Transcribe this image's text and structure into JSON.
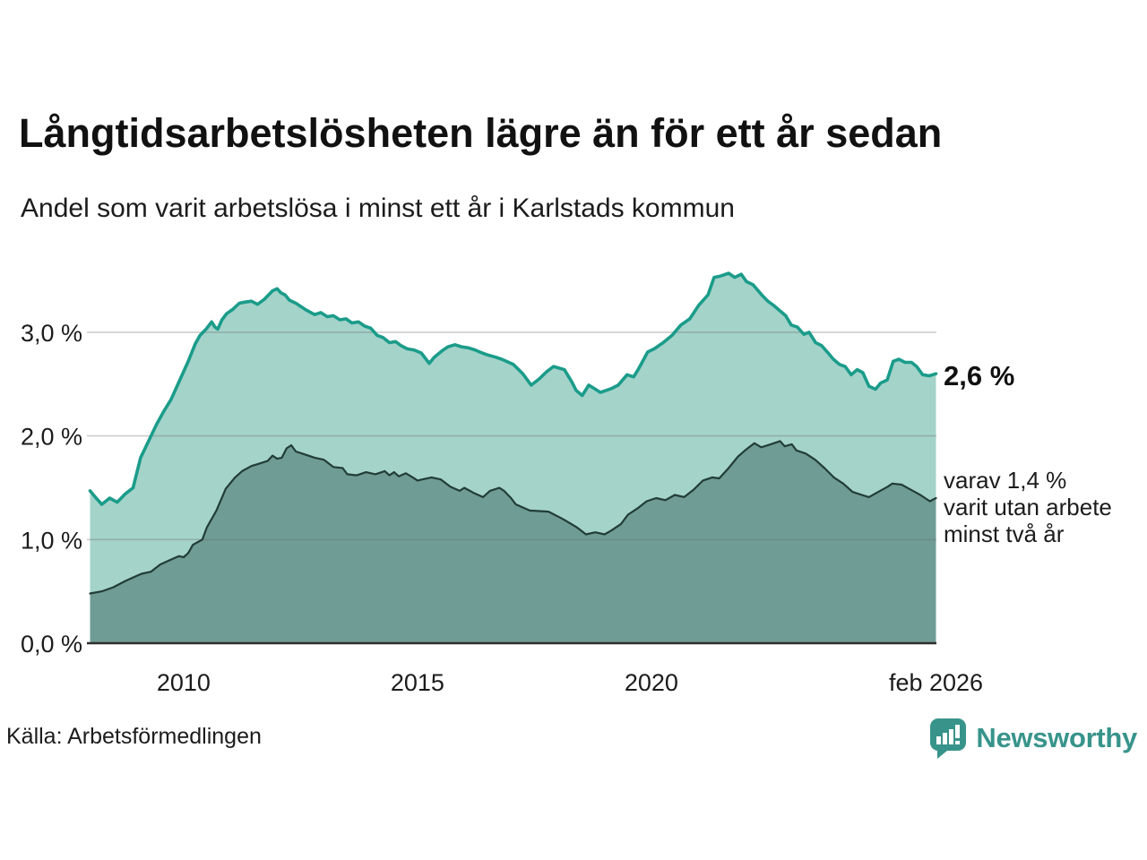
{
  "header": {
    "title": "Långtidsarbetslösheten lägre än för ett år sedan",
    "subtitle": "Andel som varit arbetslösa i minst ett år i Karlstads kommun"
  },
  "chart_data": {
    "type": "area",
    "title": "Långtidsarbetslösheten lägre än för ett år sedan",
    "subtitle": "Andel som varit arbetslösa i minst ett år i Karlstads kommun",
    "unit": "%",
    "xlim": [
      2008.0,
      2026.083
    ],
    "ylim": [
      0,
      3.7
    ],
    "grid": "horizontal",
    "legend_position": "none",
    "colors": {
      "series1_line": "#1b9c8a",
      "series1_fill": "#a4d3ca",
      "series2_line": "#223d37",
      "series2_fill": "#6f9c94",
      "gridline": "#d8d8d8",
      "baseline": "#2e2e2e",
      "axis_text": "#1c1c1c",
      "brand_teal": "#38948b"
    },
    "x_ticks": [
      {
        "value": 2010,
        "label": "2010"
      },
      {
        "value": 2015,
        "label": "2015"
      },
      {
        "value": 2020,
        "label": "2020"
      },
      {
        "value": 2026.083,
        "label": "feb 2026"
      }
    ],
    "y_ticks": [
      {
        "value": 0,
        "label": "0,0 %"
      },
      {
        "value": 1,
        "label": "1,0 %"
      },
      {
        "value": 2,
        "label": "2,0 %"
      },
      {
        "value": 3,
        "label": "3,0 %"
      }
    ],
    "annotations": {
      "end_value": "2,6 %",
      "secondary_lines": [
        "varav 1,4 %",
        "varit utan arbete",
        "minst två år"
      ]
    },
    "series": [
      {
        "name": "Andel som varit arbetslösa i minst ett år",
        "end_label": "2,6 %",
        "points": [
          [
            2008.0,
            1.47
          ],
          [
            2008.13,
            1.4
          ],
          [
            2008.25,
            1.34
          ],
          [
            2008.42,
            1.4
          ],
          [
            2008.58,
            1.36
          ],
          [
            2008.75,
            1.44
          ],
          [
            2008.92,
            1.5
          ],
          [
            2009.08,
            1.79
          ],
          [
            2009.25,
            1.95
          ],
          [
            2009.42,
            2.11
          ],
          [
            2009.58,
            2.24
          ],
          [
            2009.73,
            2.35
          ],
          [
            2009.92,
            2.54
          ],
          [
            2010.1,
            2.72
          ],
          [
            2010.25,
            2.89
          ],
          [
            2010.35,
            2.97
          ],
          [
            2010.48,
            3.03
          ],
          [
            2010.6,
            3.1
          ],
          [
            2010.67,
            3.05
          ],
          [
            2010.73,
            3.03
          ],
          [
            2010.82,
            3.12
          ],
          [
            2010.92,
            3.18
          ],
          [
            2011.05,
            3.22
          ],
          [
            2011.19,
            3.28
          ],
          [
            2011.3,
            3.29
          ],
          [
            2011.45,
            3.3
          ],
          [
            2011.58,
            3.27
          ],
          [
            2011.73,
            3.32
          ],
          [
            2011.9,
            3.4
          ],
          [
            2012.0,
            3.42
          ],
          [
            2012.08,
            3.38
          ],
          [
            2012.17,
            3.36
          ],
          [
            2012.26,
            3.31
          ],
          [
            2012.4,
            3.28
          ],
          [
            2012.6,
            3.22
          ],
          [
            2012.8,
            3.17
          ],
          [
            2012.93,
            3.19
          ],
          [
            2013.07,
            3.15
          ],
          [
            2013.2,
            3.16
          ],
          [
            2013.34,
            3.12
          ],
          [
            2013.47,
            3.13
          ],
          [
            2013.6,
            3.09
          ],
          [
            2013.74,
            3.1
          ],
          [
            2013.87,
            3.06
          ],
          [
            2014.0,
            3.04
          ],
          [
            2014.14,
            2.97
          ],
          [
            2014.26,
            2.95
          ],
          [
            2014.4,
            2.9
          ],
          [
            2014.53,
            2.91
          ],
          [
            2014.65,
            2.87
          ],
          [
            2014.78,
            2.84
          ],
          [
            2014.92,
            2.83
          ],
          [
            2015.08,
            2.8
          ],
          [
            2015.25,
            2.7
          ],
          [
            2015.36,
            2.76
          ],
          [
            2015.52,
            2.82
          ],
          [
            2015.65,
            2.86
          ],
          [
            2015.8,
            2.88
          ],
          [
            2015.94,
            2.86
          ],
          [
            2016.09,
            2.85
          ],
          [
            2016.23,
            2.83
          ],
          [
            2016.38,
            2.8
          ],
          [
            2016.51,
            2.78
          ],
          [
            2016.67,
            2.76
          ],
          [
            2016.8,
            2.74
          ],
          [
            2017.05,
            2.69
          ],
          [
            2017.25,
            2.6
          ],
          [
            2017.43,
            2.49
          ],
          [
            2017.6,
            2.55
          ],
          [
            2017.76,
            2.62
          ],
          [
            2017.91,
            2.67
          ],
          [
            2018.14,
            2.64
          ],
          [
            2018.3,
            2.52
          ],
          [
            2018.39,
            2.44
          ],
          [
            2018.52,
            2.39
          ],
          [
            2018.66,
            2.49
          ],
          [
            2018.77,
            2.46
          ],
          [
            2018.91,
            2.42
          ],
          [
            2019.04,
            2.44
          ],
          [
            2019.16,
            2.46
          ],
          [
            2019.29,
            2.49
          ],
          [
            2019.48,
            2.59
          ],
          [
            2019.62,
            2.57
          ],
          [
            2019.73,
            2.65
          ],
          [
            2019.92,
            2.81
          ],
          [
            2020.06,
            2.84
          ],
          [
            2020.25,
            2.9
          ],
          [
            2020.44,
            2.97
          ],
          [
            2020.63,
            3.07
          ],
          [
            2020.82,
            3.13
          ],
          [
            2021.01,
            3.26
          ],
          [
            2021.21,
            3.36
          ],
          [
            2021.34,
            3.53
          ],
          [
            2021.46,
            3.54
          ],
          [
            2021.65,
            3.57
          ],
          [
            2021.78,
            3.53
          ],
          [
            2021.92,
            3.56
          ],
          [
            2022.03,
            3.49
          ],
          [
            2022.17,
            3.46
          ],
          [
            2022.36,
            3.36
          ],
          [
            2022.49,
            3.3
          ],
          [
            2022.61,
            3.26
          ],
          [
            2022.74,
            3.21
          ],
          [
            2022.87,
            3.16
          ],
          [
            2022.99,
            3.07
          ],
          [
            2023.12,
            3.05
          ],
          [
            2023.26,
            2.98
          ],
          [
            2023.37,
            3.0
          ],
          [
            2023.51,
            2.9
          ],
          [
            2023.64,
            2.87
          ],
          [
            2023.76,
            2.81
          ],
          [
            2023.89,
            2.74
          ],
          [
            2024.02,
            2.69
          ],
          [
            2024.14,
            2.67
          ],
          [
            2024.27,
            2.59
          ],
          [
            2024.4,
            2.64
          ],
          [
            2024.52,
            2.61
          ],
          [
            2024.65,
            2.48
          ],
          [
            2024.79,
            2.45
          ],
          [
            2024.9,
            2.51
          ],
          [
            2025.04,
            2.54
          ],
          [
            2025.17,
            2.72
          ],
          [
            2025.29,
            2.74
          ],
          [
            2025.42,
            2.71
          ],
          [
            2025.56,
            2.71
          ],
          [
            2025.67,
            2.67
          ],
          [
            2025.8,
            2.59
          ],
          [
            2025.94,
            2.58
          ],
          [
            2026.083,
            2.6
          ]
        ]
      },
      {
        "name": "varav utan arbete minst två år",
        "end_label": "1,4 %",
        "points": [
          [
            2008.0,
            0.48
          ],
          [
            2008.25,
            0.5
          ],
          [
            2008.5,
            0.54
          ],
          [
            2008.75,
            0.6
          ],
          [
            2009.0,
            0.65
          ],
          [
            2009.1,
            0.67
          ],
          [
            2009.3,
            0.69
          ],
          [
            2009.5,
            0.76
          ],
          [
            2009.7,
            0.8
          ],
          [
            2009.9,
            0.84
          ],
          [
            2010.0,
            0.83
          ],
          [
            2010.1,
            0.87
          ],
          [
            2010.2,
            0.95
          ],
          [
            2010.4,
            1.0
          ],
          [
            2010.5,
            1.12
          ],
          [
            2010.7,
            1.28
          ],
          [
            2010.9,
            1.49
          ],
          [
            2011.1,
            1.6
          ],
          [
            2011.25,
            1.66
          ],
          [
            2011.45,
            1.71
          ],
          [
            2011.6,
            1.73
          ],
          [
            2011.8,
            1.76
          ],
          [
            2011.9,
            1.81
          ],
          [
            2012.0,
            1.78
          ],
          [
            2012.1,
            1.79
          ],
          [
            2012.2,
            1.88
          ],
          [
            2012.3,
            1.91
          ],
          [
            2012.4,
            1.85
          ],
          [
            2012.6,
            1.82
          ],
          [
            2012.8,
            1.79
          ],
          [
            2013.0,
            1.77
          ],
          [
            2013.2,
            1.7
          ],
          [
            2013.4,
            1.69
          ],
          [
            2013.5,
            1.63
          ],
          [
            2013.7,
            1.62
          ],
          [
            2013.9,
            1.65
          ],
          [
            2014.1,
            1.63
          ],
          [
            2014.3,
            1.66
          ],
          [
            2014.4,
            1.62
          ],
          [
            2014.5,
            1.65
          ],
          [
            2014.6,
            1.61
          ],
          [
            2014.75,
            1.64
          ],
          [
            2014.9,
            1.6
          ],
          [
            2015.0,
            1.57
          ],
          [
            2015.1,
            1.58
          ],
          [
            2015.3,
            1.6
          ],
          [
            2015.5,
            1.58
          ],
          [
            2015.7,
            1.51
          ],
          [
            2015.9,
            1.47
          ],
          [
            2016.0,
            1.5
          ],
          [
            2016.2,
            1.45
          ],
          [
            2016.4,
            1.41
          ],
          [
            2016.55,
            1.47
          ],
          [
            2016.75,
            1.5
          ],
          [
            2016.85,
            1.47
          ],
          [
            2017.0,
            1.4
          ],
          [
            2017.1,
            1.34
          ],
          [
            2017.4,
            1.28
          ],
          [
            2017.8,
            1.27
          ],
          [
            2018.1,
            1.2
          ],
          [
            2018.4,
            1.12
          ],
          [
            2018.6,
            1.05
          ],
          [
            2018.8,
            1.07
          ],
          [
            2019.0,
            1.05
          ],
          [
            2019.15,
            1.09
          ],
          [
            2019.35,
            1.15
          ],
          [
            2019.5,
            1.24
          ],
          [
            2019.7,
            1.3
          ],
          [
            2019.9,
            1.37
          ],
          [
            2020.1,
            1.4
          ],
          [
            2020.3,
            1.38
          ],
          [
            2020.5,
            1.43
          ],
          [
            2020.7,
            1.41
          ],
          [
            2020.9,
            1.48
          ],
          [
            2021.1,
            1.57
          ],
          [
            2021.3,
            1.6
          ],
          [
            2021.45,
            1.59
          ],
          [
            2021.65,
            1.69
          ],
          [
            2021.85,
            1.8
          ],
          [
            2022.0,
            1.86
          ],
          [
            2022.2,
            1.93
          ],
          [
            2022.35,
            1.89
          ],
          [
            2022.55,
            1.92
          ],
          [
            2022.75,
            1.95
          ],
          [
            2022.85,
            1.9
          ],
          [
            2023.0,
            1.92
          ],
          [
            2023.1,
            1.86
          ],
          [
            2023.3,
            1.83
          ],
          [
            2023.5,
            1.77
          ],
          [
            2023.7,
            1.69
          ],
          [
            2023.9,
            1.6
          ],
          [
            2024.1,
            1.54
          ],
          [
            2024.3,
            1.46
          ],
          [
            2024.5,
            1.43
          ],
          [
            2024.65,
            1.41
          ],
          [
            2024.85,
            1.46
          ],
          [
            2025.05,
            1.51
          ],
          [
            2025.15,
            1.54
          ],
          [
            2025.35,
            1.53
          ],
          [
            2025.55,
            1.48
          ],
          [
            2025.75,
            1.43
          ],
          [
            2025.95,
            1.37
          ],
          [
            2026.083,
            1.4
          ]
        ]
      }
    ]
  },
  "footer": {
    "source": "Källa: Arbetsförmedlingen",
    "brand": "Newsworthy"
  }
}
